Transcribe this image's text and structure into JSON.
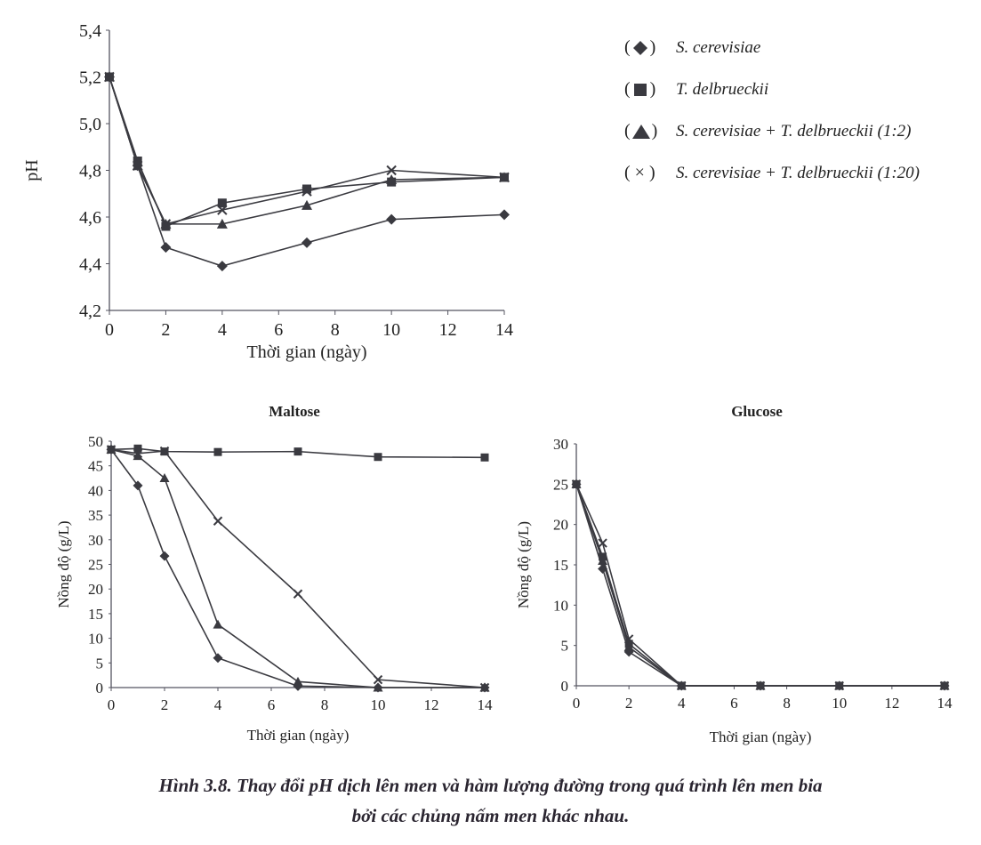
{
  "legend": {
    "items": [
      {
        "marker": "diamond",
        "label": "S. cerevisiae"
      },
      {
        "marker": "square",
        "label": "T. delbrueckii"
      },
      {
        "marker": "triangle",
        "label": "S. cerevisiae + T. delbrueckii (1:2)"
      },
      {
        "marker": "cross",
        "label": "S. cerevisiae + T. delbrueckii (1:20)"
      }
    ]
  },
  "caption": {
    "line1": "Hình 3.8. Thay đổi pH dịch lên men và hàm lượng đường trong quá trình lên men bia",
    "line2": "bởi các chủng nấm men khác nhau."
  },
  "colors": {
    "series": "#3a3a40",
    "axis": "#555560"
  },
  "chart_data": [
    {
      "id": "ph",
      "type": "line",
      "title": "",
      "xlabel": "Thời gian (ngày)",
      "ylabel": "pH",
      "xlim": [
        0,
        14
      ],
      "ylim": [
        4.2,
        5.4
      ],
      "xticks": [
        0,
        2,
        4,
        6,
        8,
        10,
        12,
        14
      ],
      "yticks": [
        "4,2",
        "4,4",
        "4,6",
        "4,8",
        "5,0",
        "5,2",
        "5,4"
      ],
      "yticks_values": [
        4.2,
        4.4,
        4.6,
        4.8,
        5.0,
        5.2,
        5.4
      ],
      "grid": false,
      "x": [
        0,
        1,
        2,
        4,
        7,
        10,
        14
      ],
      "series": [
        {
          "name": "S. cerevisiae",
          "marker": "diamond",
          "values": [
            5.2,
            4.82,
            4.47,
            4.39,
            4.49,
            4.59,
            4.61
          ]
        },
        {
          "name": "T. delbrueckii",
          "marker": "square",
          "values": [
            5.2,
            4.84,
            4.56,
            4.66,
            4.72,
            4.75,
            4.77
          ]
        },
        {
          "name": "S. cerevisiae + T. delbrueckii (1:2)",
          "marker": "triangle",
          "values": [
            5.2,
            4.82,
            4.57,
            4.57,
            4.65,
            4.76,
            4.77
          ]
        },
        {
          "name": "S. cerevisiae + T. delbrueckii (1:20)",
          "marker": "cross",
          "values": [
            5.2,
            4.82,
            4.57,
            4.63,
            4.71,
            4.8,
            4.77
          ]
        }
      ]
    },
    {
      "id": "maltose",
      "type": "line",
      "title": "Maltose",
      "xlabel": "Thời gian (ngày)",
      "ylabel": "Nồng độ (g/L)",
      "xlim": [
        0,
        14
      ],
      "ylim": [
        0,
        50
      ],
      "xticks": [
        0,
        2,
        4,
        6,
        8,
        10,
        12,
        14
      ],
      "yticks": [
        "0",
        "5",
        "10",
        "15",
        "20",
        "25",
        "30",
        "35",
        "40",
        "45",
        "50"
      ],
      "yticks_values": [
        0,
        5,
        10,
        15,
        20,
        25,
        30,
        35,
        40,
        45,
        50
      ],
      "grid": false,
      "x": [
        0,
        1,
        2,
        4,
        7,
        10,
        14
      ],
      "series": [
        {
          "name": "S. cerevisiae",
          "marker": "diamond",
          "values": [
            48.3,
            41,
            26.7,
            6,
            0.3,
            0,
            0
          ]
        },
        {
          "name": "T. delbrueckii",
          "marker": "square",
          "values": [
            48.3,
            48.5,
            47.9,
            47.8,
            47.9,
            46.8,
            46.7
          ]
        },
        {
          "name": "S. cerevisiae + T. delbrueckii (1:2)",
          "marker": "triangle",
          "values": [
            48.3,
            47,
            42.5,
            12.8,
            1.2,
            0,
            0
          ]
        },
        {
          "name": "S. cerevisiae + T. delbrueckii (1:20)",
          "marker": "cross",
          "values": [
            48.3,
            47.5,
            48,
            33.8,
            19,
            1.6,
            0
          ]
        }
      ]
    },
    {
      "id": "glucose",
      "type": "line",
      "title": "Glucose",
      "xlabel": "Thời gian (ngày)",
      "ylabel": "Nồng độ (g/L)",
      "xlim": [
        0,
        14
      ],
      "ylim": [
        0,
        30
      ],
      "xticks": [
        0,
        2,
        4,
        6,
        8,
        10,
        12,
        14
      ],
      "yticks": [
        "0",
        "5",
        "10",
        "15",
        "20",
        "25",
        "30"
      ],
      "yticks_values": [
        0,
        5,
        10,
        15,
        20,
        25,
        30
      ],
      "grid": false,
      "x": [
        0,
        1,
        2,
        4,
        7,
        10,
        14
      ],
      "series": [
        {
          "name": "S. cerevisiae",
          "marker": "diamond",
          "values": [
            25,
            14.5,
            4.2,
            0,
            0,
            0,
            0
          ]
        },
        {
          "name": "T. delbrueckii",
          "marker": "square",
          "values": [
            25,
            16,
            5.2,
            0,
            0,
            0,
            0
          ]
        },
        {
          "name": "S. cerevisiae + T. delbrueckii (1:2)",
          "marker": "triangle",
          "values": [
            25,
            15.5,
            4.8,
            0,
            0,
            0,
            0
          ]
        },
        {
          "name": "S. cerevisiae + T. delbrueckii (1:20)",
          "marker": "cross",
          "values": [
            25,
            17.7,
            5.8,
            0,
            0,
            0,
            0
          ]
        }
      ]
    }
  ]
}
